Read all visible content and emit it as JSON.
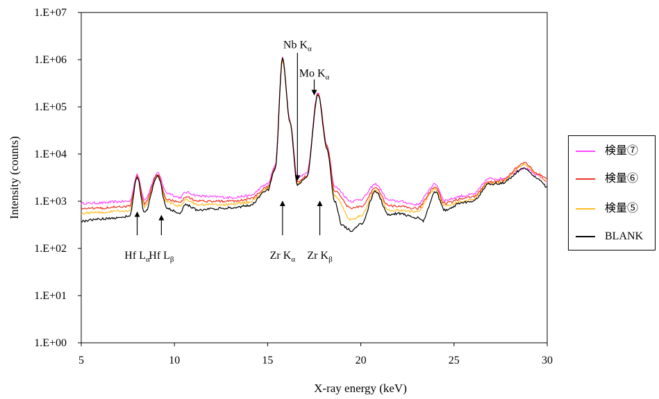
{
  "chart_data": {
    "type": "line",
    "xlabel": "X-ray energy (keV)",
    "ylabel": "Intensity (counts)",
    "xlim": [
      5,
      30
    ],
    "ylim": [
      1,
      10000000
    ],
    "yscale": "log",
    "grid": false,
    "legend_position": "right",
    "x_ticks": [
      "5",
      "10",
      "15",
      "20",
      "25",
      "30"
    ],
    "y_ticks": [
      "1.E+00",
      "1.E+01",
      "1.E+02",
      "1.E+03",
      "1.E+04",
      "1.E+05",
      "1.E+06",
      "1.E+07"
    ],
    "series": [
      {
        "name": "検量⑦",
        "color": "#ff44ff",
        "points": [
          [
            5,
            900
          ],
          [
            6,
            920
          ],
          [
            7,
            980
          ],
          [
            7.6,
            1000
          ],
          [
            8.0,
            3600
          ],
          [
            8.4,
            1100
          ],
          [
            9.1,
            3900
          ],
          [
            9.6,
            1500
          ],
          [
            10.3,
            1200
          ],
          [
            10.6,
            1550
          ],
          [
            11.3,
            1300
          ],
          [
            12,
            1250
          ],
          [
            13,
            1200
          ],
          [
            14,
            1300
          ],
          [
            15,
            2300
          ],
          [
            15.4,
            5500
          ],
          [
            15.8,
            1100000
          ],
          [
            16.2,
            50000
          ],
          [
            16.6,
            3100
          ],
          [
            17.1,
            4000
          ],
          [
            17.7,
            200000
          ],
          [
            18.2,
            15000
          ],
          [
            18.6,
            2000
          ],
          [
            19.5,
            1000
          ],
          [
            20.0,
            1100
          ],
          [
            20.8,
            2300
          ],
          [
            21.5,
            1050
          ],
          [
            22,
            1000
          ],
          [
            23,
            850
          ],
          [
            24,
            2300
          ],
          [
            24.5,
            1050
          ],
          [
            25.5,
            1300
          ],
          [
            26,
            1400
          ],
          [
            26.9,
            3000
          ],
          [
            27.5,
            3000
          ],
          [
            28.8,
            5000
          ],
          [
            29.5,
            3500
          ],
          [
            30,
            2600
          ]
        ]
      },
      {
        "name": "検量⑥",
        "color": "#ee3322",
        "points": [
          [
            5,
            700
          ],
          [
            6,
            720
          ],
          [
            7,
            760
          ],
          [
            7.6,
            780
          ],
          [
            8.0,
            3400
          ],
          [
            8.4,
            900
          ],
          [
            9.1,
            3600
          ],
          [
            9.6,
            1100
          ],
          [
            10.3,
            950
          ],
          [
            10.6,
            1250
          ],
          [
            11.3,
            1000
          ],
          [
            12,
            1000
          ],
          [
            13,
            1000
          ],
          [
            14,
            1100
          ],
          [
            15,
            2000
          ],
          [
            15.4,
            5000
          ],
          [
            15.8,
            1050000
          ],
          [
            16.2,
            48000
          ],
          [
            16.6,
            2500
          ],
          [
            17.1,
            3500
          ],
          [
            17.7,
            195000
          ],
          [
            18.2,
            14000
          ],
          [
            18.6,
            1600
          ],
          [
            19.5,
            700
          ],
          [
            20.0,
            780
          ],
          [
            20.8,
            1900
          ],
          [
            21.5,
            800
          ],
          [
            22,
            780
          ],
          [
            23,
            700
          ],
          [
            24,
            1950
          ],
          [
            24.5,
            900
          ],
          [
            25.5,
            1150
          ],
          [
            26,
            1250
          ],
          [
            26.9,
            2600
          ],
          [
            27.5,
            2700
          ],
          [
            28.8,
            6500
          ],
          [
            29.5,
            3800
          ],
          [
            30,
            2900
          ]
        ]
      },
      {
        "name": "検量⑤",
        "color": "#ffbb22",
        "points": [
          [
            5,
            560
          ],
          [
            6,
            580
          ],
          [
            7,
            620
          ],
          [
            7.6,
            640
          ],
          [
            8.0,
            3200
          ],
          [
            8.4,
            780
          ],
          [
            9.1,
            3400
          ],
          [
            9.6,
            950
          ],
          [
            10.3,
            800
          ],
          [
            10.6,
            1050
          ],
          [
            11.3,
            850
          ],
          [
            12,
            850
          ],
          [
            13,
            850
          ],
          [
            14,
            950
          ],
          [
            15,
            1800
          ],
          [
            15.4,
            4800
          ],
          [
            15.8,
            1000000
          ],
          [
            16.2,
            46000
          ],
          [
            16.6,
            2300
          ],
          [
            17.1,
            3300
          ],
          [
            17.7,
            190000
          ],
          [
            18.2,
            13000
          ],
          [
            18.6,
            1300
          ],
          [
            19.5,
            400
          ],
          [
            20.0,
            500
          ],
          [
            20.8,
            1700
          ],
          [
            21.5,
            650
          ],
          [
            22,
            650
          ],
          [
            23,
            600
          ],
          [
            24,
            1800
          ],
          [
            24.5,
            800
          ],
          [
            25.5,
            1000
          ],
          [
            26,
            1100
          ],
          [
            26.9,
            2400
          ],
          [
            27.5,
            2500
          ],
          [
            28.8,
            6000
          ],
          [
            29.5,
            3600
          ],
          [
            30,
            2700
          ]
        ]
      },
      {
        "name": "BLANK",
        "color": "#000000",
        "points": [
          [
            5,
            380
          ],
          [
            6,
            420
          ],
          [
            7,
            450
          ],
          [
            7.6,
            480
          ],
          [
            8.0,
            3300
          ],
          [
            8.4,
            560
          ],
          [
            9.1,
            3500
          ],
          [
            9.6,
            700
          ],
          [
            10.3,
            560
          ],
          [
            10.6,
            850
          ],
          [
            11.3,
            650
          ],
          [
            12,
            700
          ],
          [
            13,
            720
          ],
          [
            14,
            800
          ],
          [
            15,
            1700
          ],
          [
            15.4,
            4600
          ],
          [
            15.8,
            1050000
          ],
          [
            16.2,
            47000
          ],
          [
            16.6,
            2200
          ],
          [
            17.1,
            3200
          ],
          [
            17.7,
            185000
          ],
          [
            18.2,
            12000
          ],
          [
            18.6,
            1000
          ],
          [
            19.0,
            300
          ],
          [
            19.5,
            240
          ],
          [
            20.0,
            330
          ],
          [
            20.8,
            1600
          ],
          [
            21.5,
            520
          ],
          [
            22,
            550
          ],
          [
            23,
            450
          ],
          [
            23.3,
            380
          ],
          [
            24,
            1600
          ],
          [
            24.5,
            650
          ],
          [
            25.5,
            950
          ],
          [
            26,
            1000
          ],
          [
            26.9,
            2300
          ],
          [
            27.5,
            2400
          ],
          [
            28.8,
            5000
          ],
          [
            29.5,
            3000
          ],
          [
            30,
            2000
          ]
        ]
      }
    ],
    "annotations": [
      {
        "id": "nb",
        "main": "Nb K",
        "sub": "α",
        "x": 16.6,
        "y_text": 2000000,
        "y_from": 1400000,
        "y_to": 3100,
        "dir": "down"
      },
      {
        "id": "mo",
        "main": "Mo K",
        "sub": "α",
        "x": 17.5,
        "y_text": 500000,
        "y_from": 380000,
        "y_to": 200000,
        "dir": "down"
      },
      {
        "id": "hfla",
        "main": "Hf L",
        "sub": "α",
        "x": 8.0,
        "y_text": 100,
        "y_from": 190,
        "y_to": 530,
        "dir": "up"
      },
      {
        "id": "hflb",
        "main": "Hf L",
        "sub": "β",
        "x": 9.3,
        "y_text": 100,
        "y_from": 190,
        "y_to": 450,
        "dir": "up"
      },
      {
        "id": "zrka",
        "main": "Zr K",
        "sub": "α",
        "x": 15.8,
        "y_text": 100,
        "y_from": 190,
        "y_to": 900,
        "dir": "up"
      },
      {
        "id": "zrkb",
        "main": "Zr K",
        "sub": "β",
        "x": 17.8,
        "y_text": 100,
        "y_from": 190,
        "y_to": 900,
        "dir": "up"
      }
    ]
  }
}
